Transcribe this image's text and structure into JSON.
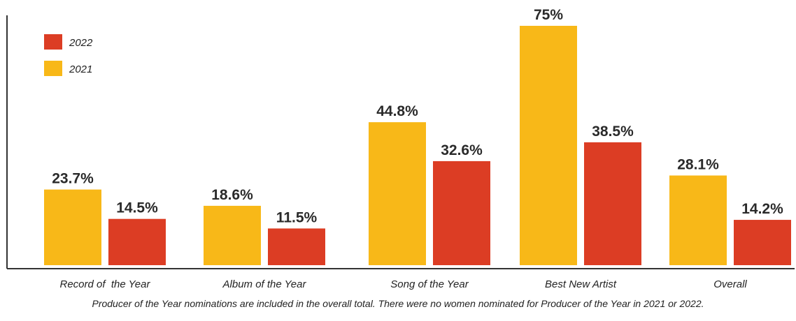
{
  "chart_data": {
    "type": "bar",
    "categories": [
      "Record of  the Year",
      "Album of the Year",
      "Song of the Year",
      "Best New Artist",
      "Overall"
    ],
    "series": [
      {
        "name": "2021",
        "color": "#F8B818",
        "values": [
          23.7,
          18.6,
          44.8,
          75,
          28.1
        ],
        "labels": [
          "23.7%",
          "18.6%",
          "44.8%",
          "75%",
          "28.1%"
        ]
      },
      {
        "name": "2022",
        "color": "#DC3D24",
        "values": [
          14.5,
          11.5,
          32.6,
          38.5,
          14.2
        ],
        "labels": [
          "14.5%",
          "11.5%",
          "32.6%",
          "38.5%",
          "14.2%"
        ]
      }
    ],
    "legend": {
      "position": "top-left",
      "order": [
        "2022",
        "2021"
      ]
    },
    "ylim": [
      0,
      75
    ],
    "grid": false,
    "footnote": "Producer of the Year nominations are included in the overall total. There were no women nominated for Producer of the Year in 2021 or 2022."
  }
}
